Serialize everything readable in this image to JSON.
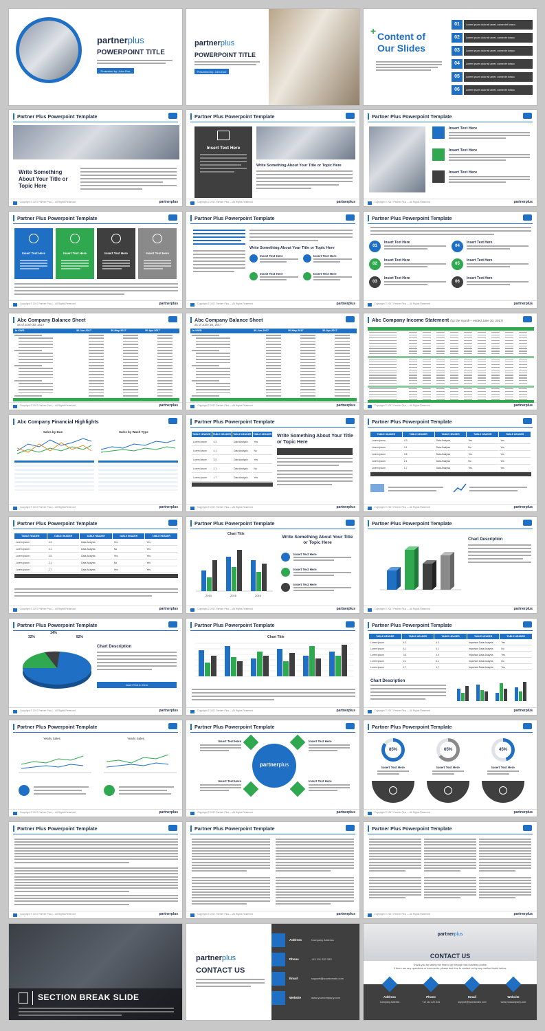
{
  "brand": {
    "name_bold": "partner",
    "name_light": "plus",
    "plus_sign": "+",
    "footer_logo": "partnerplus"
  },
  "colors": {
    "blue": "#1f6fc4",
    "green": "#2fa84f",
    "dark": "#3f3f3f",
    "navy": "#1f2c44"
  },
  "common": {
    "header": "Partner Plus Powerpoint Template",
    "copyright": "Copyright © 2017 Partner Plus — All Rights Reserved",
    "insert_text": "Insert Text Here",
    "lorem_short": "Lorem ipsum dolor sit amet, consectetur adipiscing elit.",
    "table_header": "TABLE HEADER",
    "lorem_ipsum": "Lorem Ipsum",
    "data_analysis": "Data Analysis",
    "important_data": "Important Data Analysis",
    "yes": "Yes",
    "no": "No"
  },
  "slide1": {
    "title": "POWERPOINT TITLE",
    "presenter": "Presented by: John Doe"
  },
  "slide2": {
    "title": "POWERPOINT TITLE",
    "presenter": "Presented by: John Doe"
  },
  "slide3": {
    "heading_line1": "Content of",
    "heading_line2": "Our Slides",
    "items": [
      {
        "num": "01",
        "label": "Lorem ipsum dolor sit amet, consectet turacu"
      },
      {
        "num": "02",
        "label": "Lorem ipsum dolor sit amet, consecte turacu"
      },
      {
        "num": "03",
        "label": "Lorem ipsum dolor sit amet, consecte turacu"
      },
      {
        "num": "04",
        "label": "Lorem ipsum dolor sit amet, consecte turacu"
      },
      {
        "num": "05",
        "label": "Lorem ipsum dolor sit amet, consecte turacu"
      },
      {
        "num": "06",
        "label": "Lorem ipsum dolor sit amet, consecte turacu"
      }
    ]
  },
  "slide4": {
    "heading": "Write Something About Your Title or Topic Here"
  },
  "slide5": {
    "box_title": "Insert Text Here",
    "heading": "Write Something About Your Title or Topic Here"
  },
  "slide6": {
    "items": [
      "Insert Text Here",
      "Insert Text Here",
      "Insert Text Here"
    ]
  },
  "slide7": {
    "cards": [
      "Insert Text Here",
      "Insert Text Here",
      "Insert Text Here",
      "Insert Text Here"
    ]
  },
  "slide8": {
    "heading": "Write Something About Your Title or Topic Here",
    "items": [
      "Insert Text Here",
      "Insert Text Here"
    ]
  },
  "slide9": {
    "items": [
      {
        "num": "01",
        "label": "Insert Text Here"
      },
      {
        "num": "02",
        "label": "Insert Text Here"
      },
      {
        "num": "03",
        "label": "Insert Text Here"
      },
      {
        "num": "04",
        "label": "Insert Text Here"
      },
      {
        "num": "05",
        "label": "Insert Text Here"
      },
      {
        "num": "06",
        "label": "Insert Text Here"
      }
    ]
  },
  "slide10": {
    "title": "Abc Company Balance Sheet",
    "sub": "as of June 30, 2017",
    "cols": [
      "In KWD",
      "30-Jun-2017",
      "30-May-2017",
      "30-Apr-2017"
    ]
  },
  "slide11": {
    "title": "Abc Company Balance Sheet",
    "sub": "as of June 30, 2017",
    "cols": [
      "In KWD",
      "30-Jun-2017",
      "30-May-2017",
      "30-Apr-2017"
    ]
  },
  "slide12": {
    "title": "Abc Company Income Statement",
    "sub": "(for the month – ended June 30, 2017)"
  },
  "slide13": {
    "title": "Abc Company Financial Highlights",
    "chart1": "Sales by Bus",
    "chart2": "Sales by Wash Type"
  },
  "slide14": {
    "heading": "Write Something About Your Title or Topic Here"
  },
  "slide17": {
    "chart_title": "Chart Title",
    "heading": "Write Something About Your Title or Topic Here",
    "items": [
      "Insert Text Here",
      "Insert Text Here",
      "Insert Text Here"
    ],
    "years": [
      "2014",
      "2015",
      "2016"
    ]
  },
  "slide18": {
    "heading": "Chart Description"
  },
  "slide19": {
    "heading": "Chart Description",
    "button": "Insert Text In Here",
    "pcts": [
      "32%",
      "14%",
      "82%"
    ]
  },
  "slide20": {
    "chart_title": "Chart Title"
  },
  "slide21": {
    "heading": "Chart Description"
  },
  "slide22": {
    "chart1": "Yearly Sales",
    "chart2": "Yearly Sales"
  },
  "slide23": {
    "items": [
      "Insert Text Here",
      "Insert Text Here",
      "Insert Text Here",
      "Insert Text Here"
    ]
  },
  "slide24": {
    "pcts": [
      "85%",
      "65%",
      "45%"
    ],
    "items": [
      "Insert Text Here",
      "Insert Text Here",
      "Insert Text Here"
    ]
  },
  "slide28": {
    "title": "SECTION BREAK SLIDE"
  },
  "slide29": {
    "title": "CONTACT US",
    "rows": [
      {
        "label": "Address",
        "value": "Company Address"
      },
      {
        "label": "Phone",
        "value": "+12 111 222 333"
      },
      {
        "label": "Email",
        "value": "support@yourdomain.com"
      },
      {
        "label": "Website",
        "value": "www.yourcompany.com"
      }
    ]
  },
  "slide30": {
    "title": "CONTACT US",
    "text": "Thank you for taking the time to go through this business profile.\nIf there are any questions or comments, please feel free to contact us by any method listed below.",
    "cols": [
      {
        "label": "Address",
        "value": "Company Address"
      },
      {
        "label": "Phone",
        "value": "+12 111 222 333"
      },
      {
        "label": "Email",
        "value": "support@yourdomain.com"
      },
      {
        "label": "Website",
        "value": "www.yourcompany.com"
      }
    ]
  }
}
